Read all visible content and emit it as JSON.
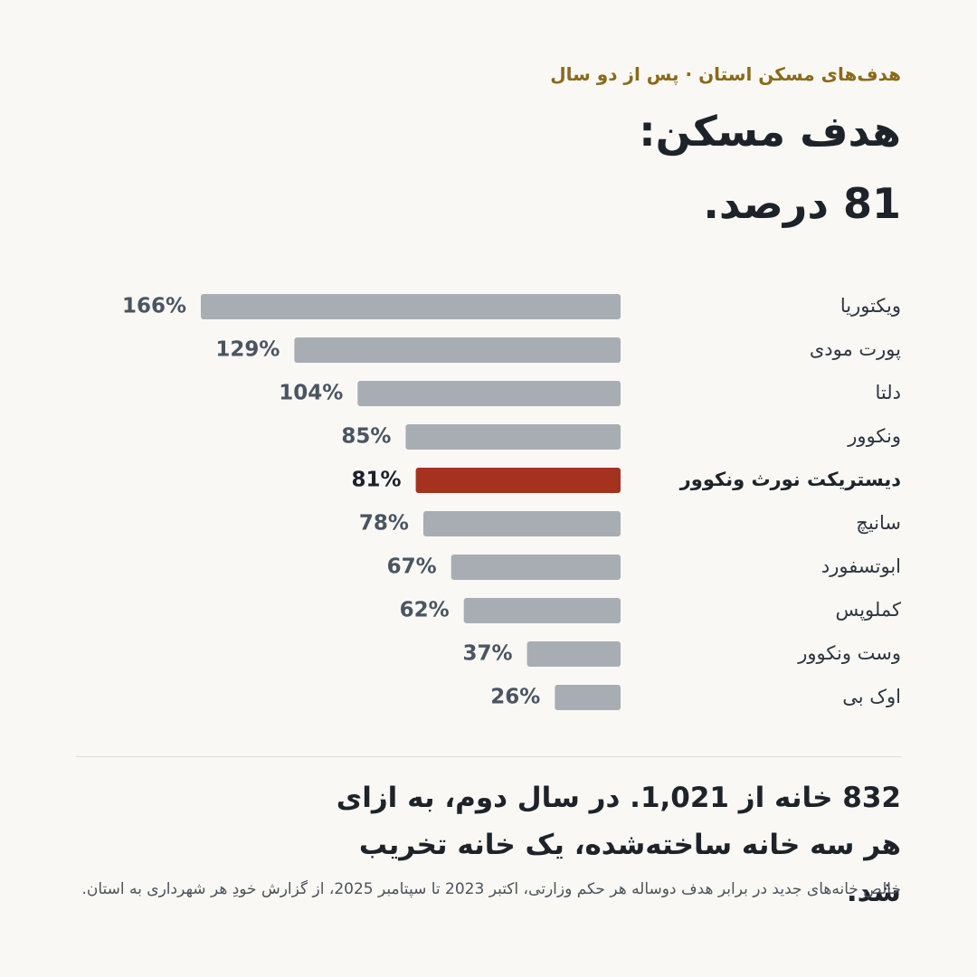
{
  "chart_data": {
    "type": "bar",
    "orientation": "horizontal",
    "subtitle": "هدف‌های مسکن استان · پس از دو سال",
    "title": [
      "هدف مسکن:",
      "81 درصد."
    ],
    "categories": [
      "ویکتوریا",
      "پورت مودی",
      "دلتا",
      "ونکوور",
      "دیستریکت نورث ونکوور",
      "سانیچ",
      "ابوتسفورد",
      "کملوپس",
      "وست ونکوور",
      "اوک بی"
    ],
    "values": [
      166,
      129,
      104,
      85,
      81,
      78,
      67,
      62,
      37,
      26
    ],
    "value_labels": [
      "166%",
      "129%",
      "104%",
      "85%",
      "81%",
      "78%",
      "67%",
      "62%",
      "37%",
      "26%"
    ],
    "colors": [
      "#a8adb3",
      "#a8adb3",
      "#a8adb3",
      "#a8adb3",
      "#a5321f",
      "#a8adb3",
      "#a8adb3",
      "#a8adb3",
      "#a8adb3",
      "#a8adb3"
    ],
    "headline": "832 خانه از 1,021. در سال دوم، به ازای هر سه خانه ساخته‌شده، یک خانه تخریب شد.",
    "note": "خالص خانه‌های جدید در برابر هدف دوساله هر حکم وزارتی، اکتبر 2023 تا سپتامبر 2025، از گزارش خودِ هر شهرداری به استان."
  }
}
